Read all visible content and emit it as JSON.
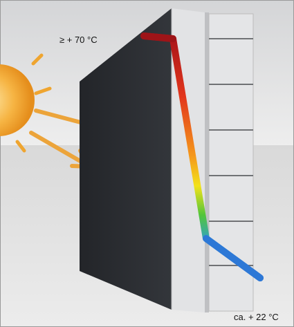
{
  "labels": {
    "outside_temperature": "≥ + 70 °C",
    "inside_temperature": "ca. + 22 °C"
  }
}
